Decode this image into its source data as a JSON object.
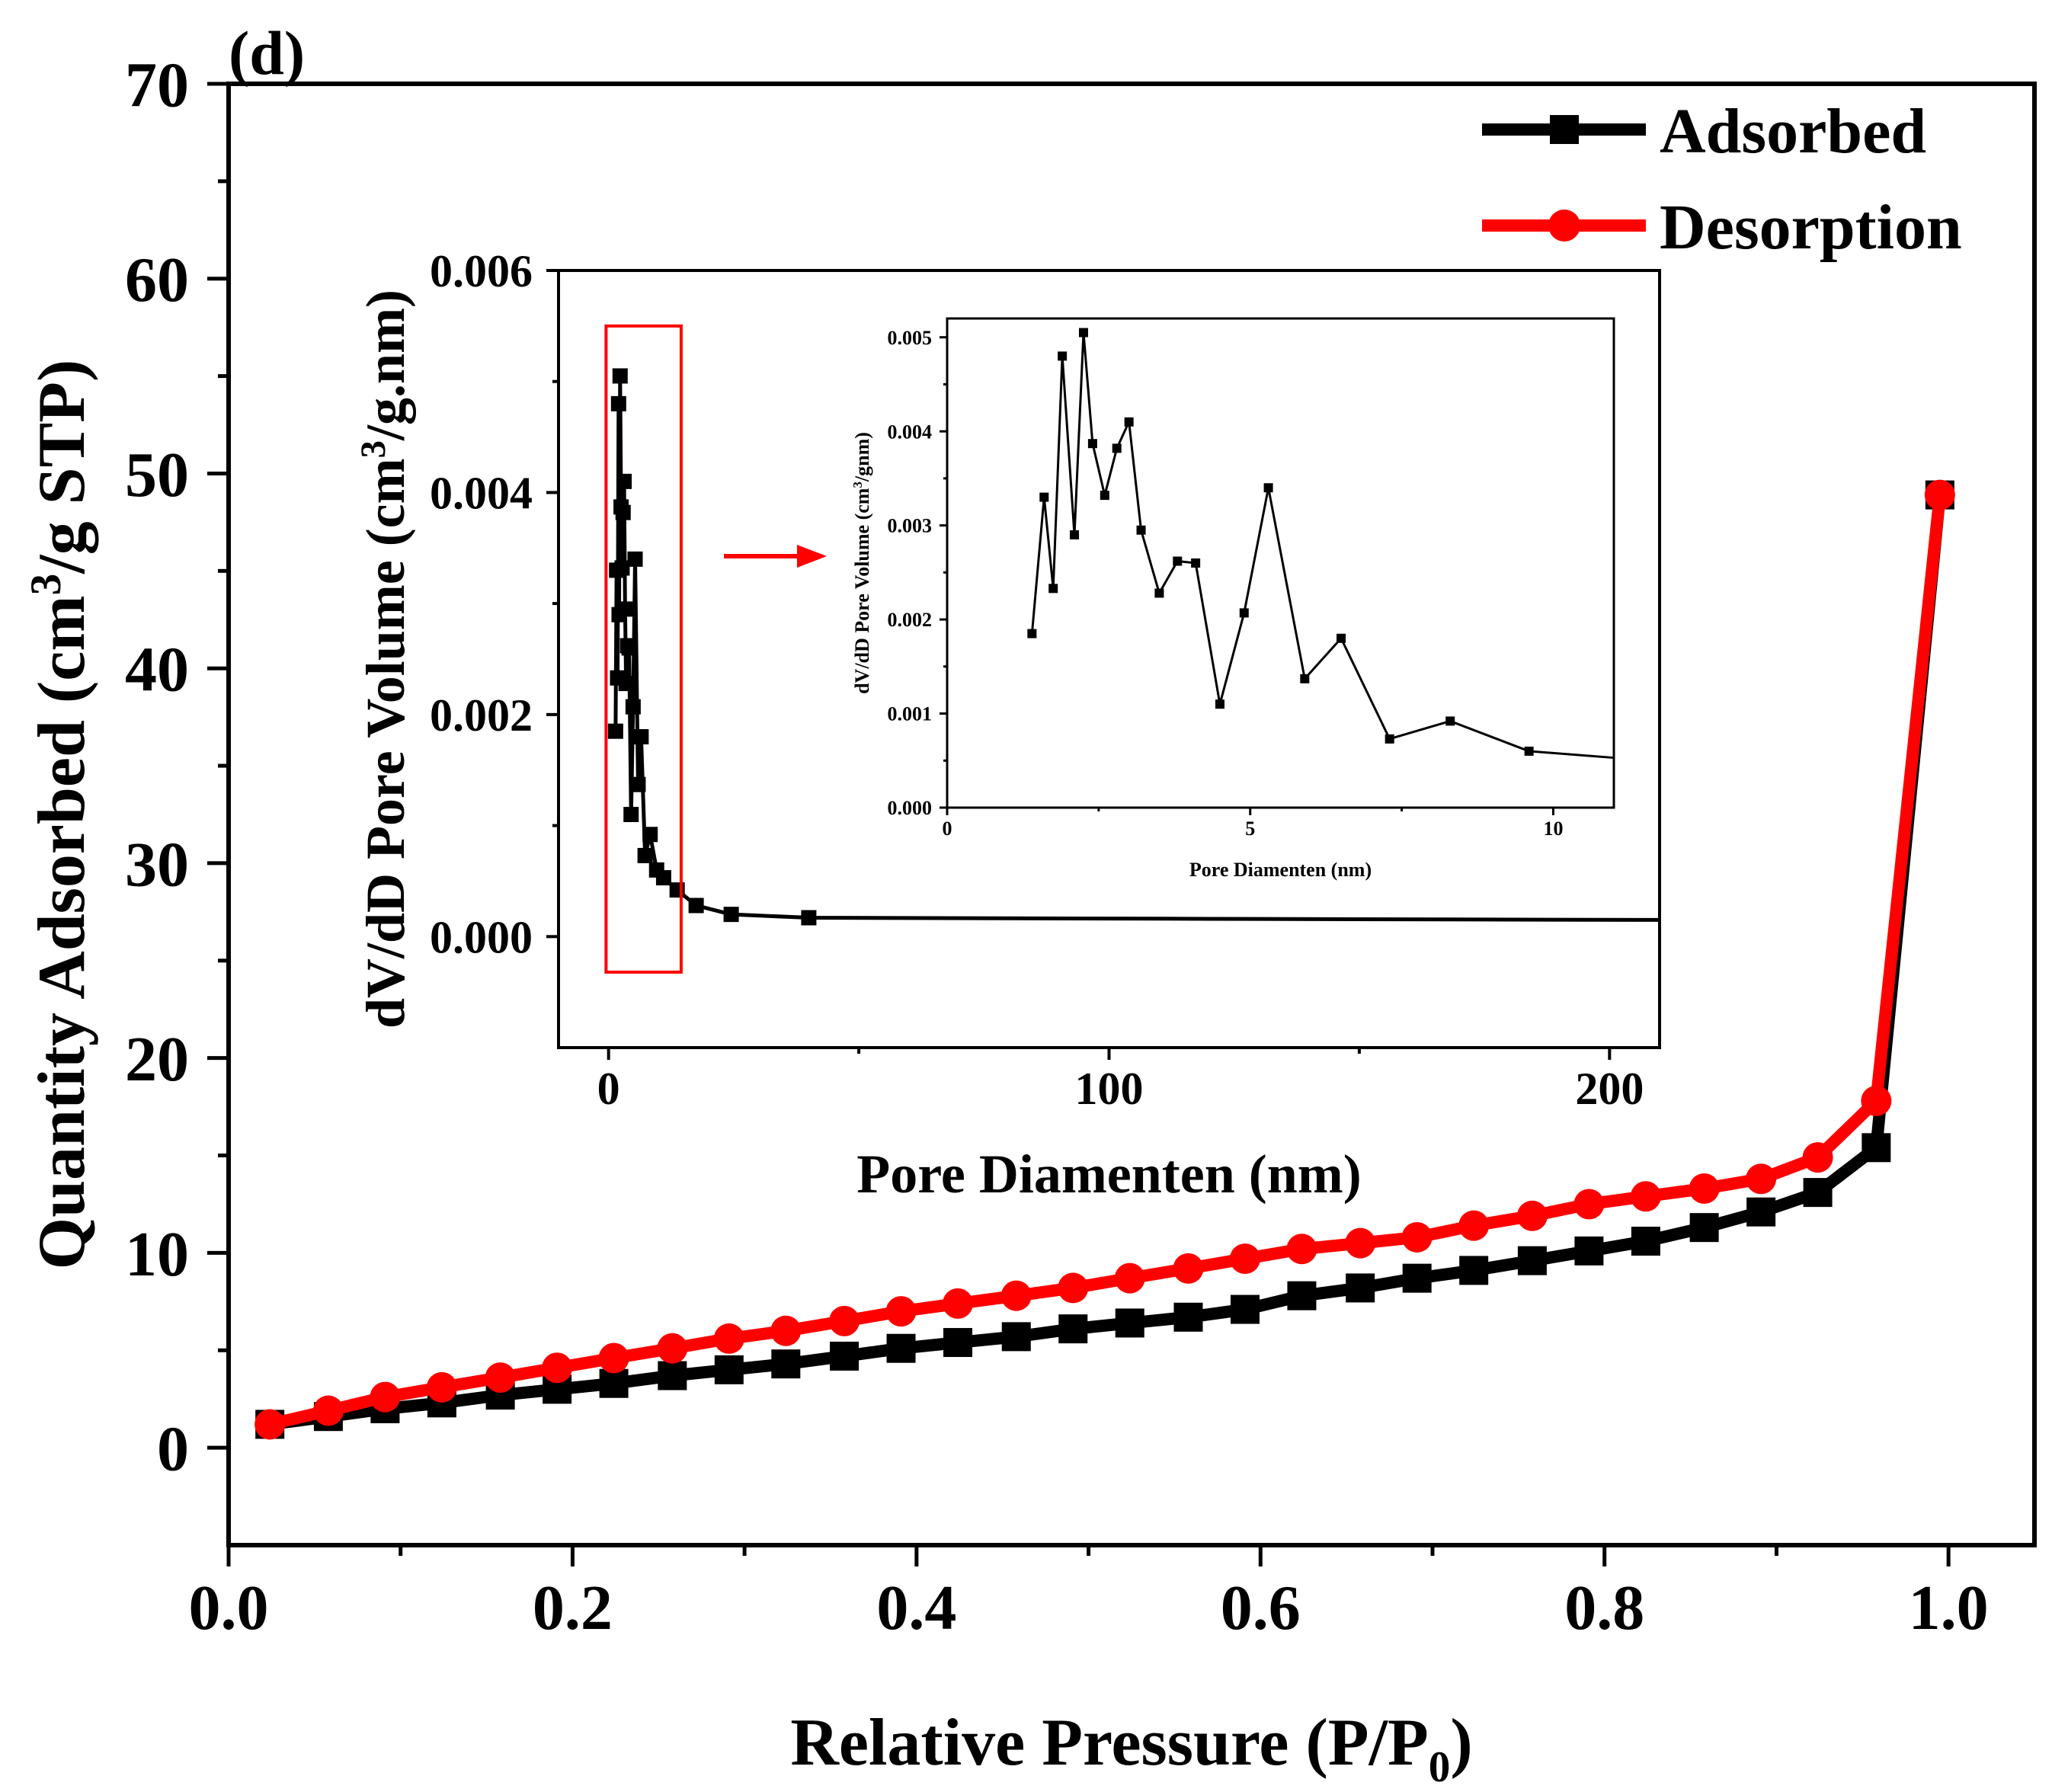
{
  "panel_label": "(d)",
  "colors": {
    "adsorbed": "#000000",
    "desorption": "#ff0000",
    "zoom_box": "#ff0000",
    "arrow": "#ff0000"
  },
  "chart_data": [
    {
      "type": "line",
      "xlabel": "Relative Pressure (P/P",
      "xlabel_sub": "0",
      "xlabel_end": ")",
      "ylabel": "Quantity Adsorbed (cm",
      "ylabel_sup": "3",
      "ylabel_end": "/g STP)",
      "xlim": [
        0.0,
        1.05
      ],
      "ylim": [
        -5,
        70
      ],
      "xticks": [
        "0.0",
        "0.2",
        "0.4",
        "0.6",
        "0.8",
        "1.0"
      ],
      "yticks": [
        "0",
        "10",
        "20",
        "30",
        "40",
        "50",
        "60",
        "70"
      ],
      "legend_position": "top-right",
      "series": [
        {
          "name": "Adsorbed",
          "marker": "square",
          "x": [
            0.024,
            0.058,
            0.091,
            0.124,
            0.158,
            0.191,
            0.224,
            0.258,
            0.291,
            0.324,
            0.358,
            0.391,
            0.424,
            0.458,
            0.491,
            0.524,
            0.558,
            0.591,
            0.624,
            0.658,
            0.691,
            0.724,
            0.758,
            0.791,
            0.824,
            0.858,
            0.891,
            0.924,
            0.958,
            0.995
          ],
          "y": [
            1.2,
            1.6,
            2.0,
            2.3,
            2.7,
            3.0,
            3.3,
            3.7,
            4.0,
            4.3,
            4.7,
            5.1,
            5.4,
            5.7,
            6.1,
            6.4,
            6.7,
            7.1,
            7.8,
            8.2,
            8.7,
            9.1,
            9.6,
            10.1,
            10.6,
            11.3,
            12.1,
            13.1,
            15.4,
            48.9
          ]
        },
        {
          "name": "Desorption",
          "marker": "circle",
          "x": [
            0.995,
            0.958,
            0.924,
            0.891,
            0.858,
            0.824,
            0.791,
            0.758,
            0.724,
            0.691,
            0.658,
            0.624,
            0.591,
            0.558,
            0.524,
            0.491,
            0.458,
            0.424,
            0.391,
            0.358,
            0.324,
            0.291,
            0.258,
            0.224,
            0.191,
            0.158,
            0.124,
            0.091,
            0.058,
            0.024
          ],
          "y": [
            48.9,
            17.8,
            14.9,
            13.8,
            13.3,
            12.9,
            12.5,
            11.9,
            11.4,
            10.8,
            10.5,
            10.2,
            9.7,
            9.2,
            8.7,
            8.2,
            7.8,
            7.4,
            7.0,
            6.5,
            6.0,
            5.6,
            5.1,
            4.6,
            4.1,
            3.6,
            3.1,
            2.6,
            1.9,
            1.2
          ]
        }
      ]
    },
    {
      "type": "line",
      "inset": "outer",
      "xlabel": "Pore Diamenten (nm)",
      "ylabel": "dV/dD Pore Volume (cm",
      "ylabel_sup": "3",
      "ylabel_end": "/g.nm)",
      "xlim": [
        -10,
        210
      ],
      "ylim": [
        -0.001,
        0.006
      ],
      "xticks": [
        "0",
        "100",
        "200"
      ],
      "yticks": [
        "0.000",
        "0.002",
        "0.004",
        "0.006"
      ],
      "series": [
        {
          "marker": "square",
          "x": [
            1.4,
            1.6,
            1.8,
            2.0,
            2.1,
            2.3,
            2.5,
            2.7,
            2.9,
            3.1,
            3.3,
            3.5,
            3.8,
            4.1,
            4.5,
            4.9,
            5.3,
            5.9,
            6.5,
            7.3,
            8.3,
            9.6,
            11.0,
            13.7,
            17.5,
            24.5,
            40.0,
            120.0,
            210.0
          ],
          "y": [
            0.00185,
            0.0033,
            0.00233,
            0.0048,
            0.0029,
            0.00505,
            0.00387,
            0.00332,
            0.00382,
            0.0041,
            0.00295,
            0.00228,
            0.00262,
            0.0026,
            0.0011,
            0.00207,
            0.0034,
            0.00137,
            0.0018,
            0.00073,
            0.00092,
            0.0006,
            0.00053,
            0.00042,
            0.00028,
            0.0002,
            0.00017,
            0.00016,
            0.00015
          ],
          "markers_until_index": 26
        }
      ],
      "zoom_box": {
        "x": [
          -0.5,
          14.5
        ],
        "y": [
          -0.00032,
          0.0055
        ]
      }
    },
    {
      "type": "line",
      "inset": "inner",
      "xlabel": "Pore Diamenten (nm)",
      "ylabel": "dV/dD Pore Volume (cm",
      "ylabel_sup": "3",
      "ylabel_end": "/gnm)",
      "xlim": [
        0,
        11
      ],
      "ylim": [
        0,
        0.0052
      ],
      "xticks": [
        "0",
        "5",
        "10"
      ],
      "yticks": [
        "0.000",
        "0.001",
        "0.002",
        "0.003",
        "0.004",
        "0.005"
      ],
      "series": [
        {
          "marker": "square",
          "x": [
            1.4,
            1.6,
            1.75,
            1.9,
            2.1,
            2.25,
            2.4,
            2.6,
            2.8,
            3.0,
            3.2,
            3.5,
            3.8,
            4.1,
            4.5,
            4.9,
            5.3,
            5.9,
            6.5,
            7.3,
            8.3,
            9.6,
            11.0
          ],
          "y": [
            0.00185,
            0.0033,
            0.00233,
            0.0048,
            0.0029,
            0.00505,
            0.00387,
            0.00332,
            0.00382,
            0.0041,
            0.00295,
            0.00228,
            0.00262,
            0.0026,
            0.0011,
            0.00207,
            0.0034,
            0.00137,
            0.0018,
            0.00073,
            0.00092,
            0.0006,
            0.00053
          ],
          "markers_until_index": 21
        }
      ]
    }
  ]
}
